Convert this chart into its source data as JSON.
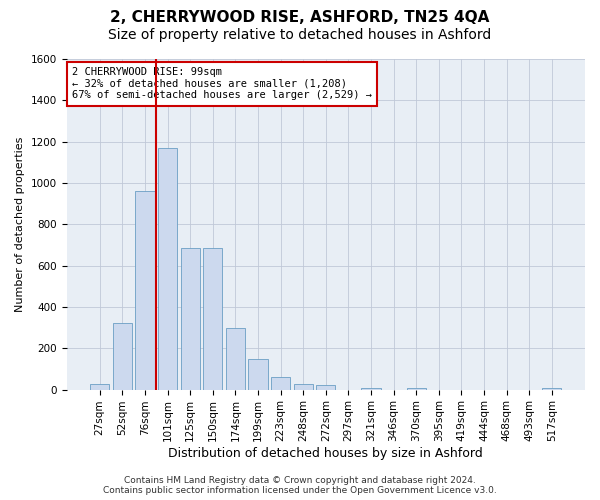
{
  "title": "2, CHERRYWOOD RISE, ASHFORD, TN25 4QA",
  "subtitle": "Size of property relative to detached houses in Ashford",
  "xlabel": "Distribution of detached houses by size in Ashford",
  "ylabel": "Number of detached properties",
  "categories": [
    "27sqm",
    "52sqm",
    "76sqm",
    "101sqm",
    "125sqm",
    "150sqm",
    "174sqm",
    "199sqm",
    "223sqm",
    "248sqm",
    "272sqm",
    "297sqm",
    "321sqm",
    "346sqm",
    "370sqm",
    "395sqm",
    "419sqm",
    "444sqm",
    "468sqm",
    "493sqm",
    "517sqm"
  ],
  "values": [
    25,
    320,
    960,
    1170,
    685,
    685,
    300,
    150,
    60,
    25,
    20,
    0,
    10,
    0,
    10,
    0,
    0,
    0,
    0,
    0,
    10
  ],
  "bar_color": "#ccd9ee",
  "bar_edge_color": "#6a9ec4",
  "vline_color": "#cc0000",
  "annotation_text": "2 CHERRYWOOD RISE: 99sqm\n← 32% of detached houses are smaller (1,208)\n67% of semi-detached houses are larger (2,529) →",
  "annotation_box_color": "#ffffff",
  "annotation_box_edge": "#cc0000",
  "ylim": [
    0,
    1600
  ],
  "yticks": [
    0,
    200,
    400,
    600,
    800,
    1000,
    1200,
    1400,
    1600
  ],
  "grid_color": "#c0c8d8",
  "background_color": "#e8eef5",
  "footer": "Contains HM Land Registry data © Crown copyright and database right 2024.\nContains public sector information licensed under the Open Government Licence v3.0.",
  "title_fontsize": 11,
  "subtitle_fontsize": 10,
  "xlabel_fontsize": 9,
  "ylabel_fontsize": 8,
  "tick_fontsize": 7.5,
  "footer_fontsize": 6.5,
  "vline_bar_index": 3
}
